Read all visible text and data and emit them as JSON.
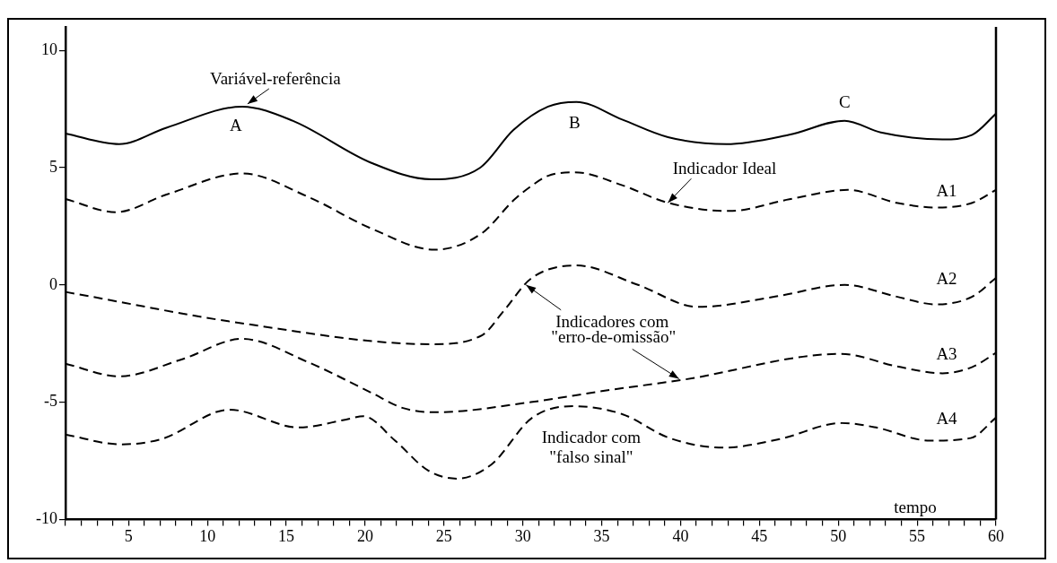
{
  "chart_data": {
    "type": "line",
    "xlabel": "tempo",
    "marker": "none",
    "xlim": [
      1,
      60
    ],
    "ylim": [
      -10,
      11
    ],
    "xticks": [
      {
        "value": 1,
        "label": null
      },
      {
        "value": 2,
        "label": null
      },
      {
        "value": 3,
        "label": null
      },
      {
        "value": 4,
        "label": null
      },
      5,
      {
        "value": 6,
        "label": null
      },
      {
        "value": 7,
        "label": null
      },
      {
        "value": 8,
        "label": null
      },
      {
        "value": 9,
        "label": null
      },
      10,
      {
        "value": 11,
        "label": null
      },
      {
        "value": 12,
        "label": null
      },
      {
        "value": 13,
        "label": null
      },
      {
        "value": 14,
        "label": null
      },
      15,
      {
        "value": 16,
        "label": null
      },
      {
        "value": 17,
        "label": null
      },
      {
        "value": 18,
        "label": null
      },
      {
        "value": 19,
        "label": null
      },
      20,
      {
        "value": 21,
        "label": null
      },
      {
        "value": 22,
        "label": null
      },
      {
        "value": 23,
        "label": null
      },
      {
        "value": 24,
        "label": null
      },
      25,
      {
        "value": 26,
        "label": null
      },
      {
        "value": 27,
        "label": null
      },
      {
        "value": 28,
        "label": null
      },
      {
        "value": 29,
        "label": null
      },
      30,
      {
        "value": 31,
        "label": null
      },
      {
        "value": 32,
        "label": null
      },
      {
        "value": 33,
        "label": null
      },
      {
        "value": 34,
        "label": null
      },
      35,
      {
        "value": 36,
        "label": null
      },
      {
        "value": 37,
        "label": null
      },
      {
        "value": 38,
        "label": null
      },
      {
        "value": 39,
        "label": null
      },
      40,
      {
        "value": 41,
        "label": null
      },
      {
        "value": 42,
        "label": null
      },
      {
        "value": 43,
        "label": null
      },
      {
        "value": 44,
        "label": null
      },
      45,
      {
        "value": 46,
        "label": null
      },
      {
        "value": 47,
        "label": null
      },
      {
        "value": 48,
        "label": null
      },
      {
        "value": 49,
        "label": null
      },
      50,
      {
        "value": 51,
        "label": null
      },
      {
        "value": 52,
        "label": null
      },
      {
        "value": 53,
        "label": null
      },
      {
        "value": 54,
        "label": null
      },
      55,
      {
        "value": 56,
        "label": null
      },
      {
        "value": 57,
        "label": null
      },
      {
        "value": 58,
        "label": null
      },
      {
        "value": 59,
        "label": null
      },
      60
    ],
    "yticks": [
      -10,
      -5,
      0,
      5,
      10
    ],
    "series": [
      {
        "name": "Variável-referência",
        "color": "#000000",
        "line_style": "solid",
        "x": [
          1.0,
          4.4,
          7.4,
          12.2,
          15.4,
          20.4,
          24.2,
          27.3,
          29.4,
          31.6,
          33.4,
          36.3,
          39.2,
          42.9,
          46.9,
          50.4,
          52.7,
          56.6,
          58.5,
          60
        ],
        "values": [
          6.45,
          6.0,
          6.7,
          7.6,
          7.0,
          5.2,
          4.5,
          5.0,
          6.6,
          7.6,
          7.8,
          7.05,
          6.3,
          6.0,
          6.4,
          7.0,
          6.5,
          6.2,
          6.4,
          7.3
        ]
      },
      {
        "name": "A1",
        "color": "#000000",
        "line_style": "dashed",
        "x": [
          1.0,
          4.2,
          7.4,
          12.2,
          16.4,
          20.4,
          24.4,
          27.4,
          29.4,
          30.5,
          31.6,
          33.3,
          36.3,
          39.2,
          43.1,
          46.9,
          50.6,
          53.7,
          56.2,
          58.5,
          60
        ],
        "values": [
          3.66,
          3.1,
          3.85,
          4.75,
          3.75,
          2.4,
          1.5,
          2.2,
          3.6,
          4.2,
          4.65,
          4.8,
          4.25,
          3.5,
          3.15,
          3.65,
          4.05,
          3.5,
          3.3,
          3.5,
          4.05
        ]
      },
      {
        "name": "A2",
        "color": "#000000",
        "line_style": "dashed",
        "x": [
          1.0,
          12.4,
          24.2,
          27.4,
          28.8,
          30.5,
          33.4,
          37.3,
          41.1,
          46.0,
          50.4,
          53.7,
          56.2,
          58.5,
          60
        ],
        "values": [
          -0.3,
          -1.66,
          -2.53,
          -2.15,
          -1.1,
          0.26,
          0.83,
          0.0,
          -0.94,
          -0.5,
          0.0,
          -0.5,
          -0.83,
          -0.5,
          0.3
        ]
      },
      {
        "name": "A3",
        "color": "#000000",
        "line_style": "dashed",
        "x": [
          1.0,
          4.4,
          8.4,
          12.2,
          16.4,
          20.4,
          22.4,
          24.5,
          30.5,
          35.0,
          40.2,
          50.2,
          53.7,
          56.6,
          58.5,
          60
        ],
        "values": [
          -3.36,
          -3.9,
          -3.17,
          -2.3,
          -3.3,
          -4.6,
          -5.25,
          -5.43,
          -5.0,
          -4.53,
          -4.04,
          -2.94,
          -3.47,
          -3.77,
          -3.5,
          -2.9
        ]
      },
      {
        "name": "A4",
        "color": "#000000",
        "line_style": "dashed",
        "x": [
          1.0,
          4.5,
          7.1,
          11.4,
          15.8,
          18.8,
          19.9,
          21.9,
          24.0,
          25.8,
          28.0,
          30.6,
          33.2,
          36.3,
          39.3,
          42.7,
          46.3,
          50.2,
          52.4,
          55.8,
          58.4,
          60
        ],
        "values": [
          -6.38,
          -6.8,
          -6.57,
          -5.32,
          -6.08,
          -5.74,
          -5.6,
          -6.64,
          -7.92,
          -8.26,
          -7.66,
          -5.66,
          -5.17,
          -5.51,
          -6.53,
          -6.94,
          -6.57,
          -5.89,
          -6.08,
          -6.64,
          -6.53,
          -5.66
        ]
      }
    ],
    "annotations": [
      {
        "text": "A",
        "x": 12.2,
        "y": 7.6
      },
      {
        "text": "B",
        "x": 33.4,
        "y": 7.8
      },
      {
        "text": "C",
        "x": 50.4,
        "y": 7.0
      },
      {
        "text": "Indicador Ideal",
        "x": 39.2,
        "y": 3.5
      },
      {
        "text": "Indicadores com",
        "x": 30.2,
        "y": 0.0
      },
      {
        "text": "\"erro-de-omissão\"",
        "x": 39.9,
        "y": -4.0
      },
      "Indicador com",
      "\"falso sinal\""
    ]
  }
}
